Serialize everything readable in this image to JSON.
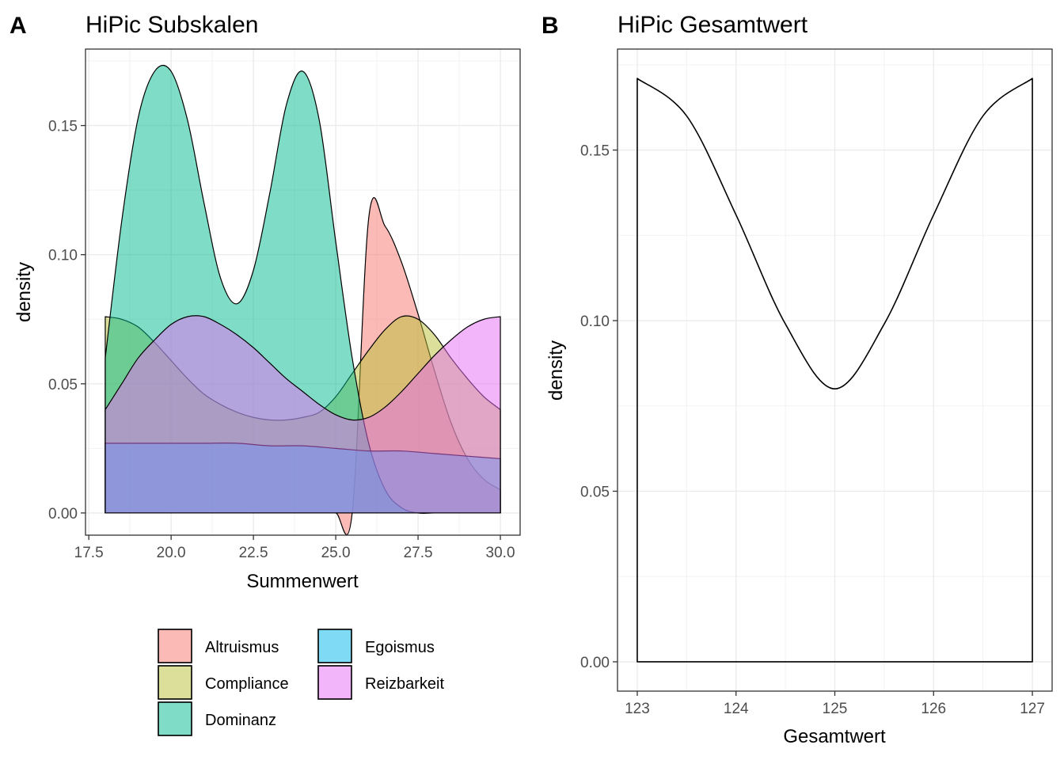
{
  "chart_data": [
    {
      "panel": "A",
      "type": "area",
      "title": "HiPic Subskalen",
      "xlabel": "Summenwert",
      "ylabel": "density",
      "xlim": [
        17.4,
        30.6
      ],
      "ylim": [
        -0.0086,
        0.1796
      ],
      "xticks": [
        17.5,
        20.0,
        22.5,
        25.0,
        27.5,
        30.0
      ],
      "xtick_labels": [
        "17.5",
        "20.0",
        "22.5",
        "25.0",
        "27.5",
        "30.0"
      ],
      "yticks": [
        0.0,
        0.05,
        0.1,
        0.15
      ],
      "ytick_labels": [
        "0.00",
        "0.05",
        "0.10",
        "0.15"
      ],
      "grid": true,
      "legend_position": "bottom",
      "series": [
        {
          "name": "Altruismus",
          "color": "#F8766D",
          "x": [
            18,
            18.5,
            19,
            19.5,
            20,
            20.5,
            21,
            21.5,
            22,
            22.5,
            23,
            23.5,
            24,
            24.5,
            25,
            25.5,
            26,
            26.5,
            27,
            27.5,
            28,
            28.5,
            29,
            29.5,
            30
          ],
          "y": [
            0.0,
            0.0,
            0.0,
            0.0,
            0.0,
            0.0,
            0.0,
            0.0,
            0.0,
            0.0,
            0.0,
            0.0,
            0.0,
            0.0,
            0.0,
            0.0,
            0.114,
            0.111,
            0.097,
            0.077,
            0.055,
            0.035,
            0.021,
            0.013,
            0.009
          ]
        },
        {
          "name": "Compliance",
          "color": "#B7C033",
          "x": [
            18,
            18.5,
            19,
            19.5,
            20,
            20.5,
            21,
            21.5,
            22,
            22.5,
            23,
            23.5,
            24,
            24.5,
            25,
            25.5,
            26,
            26.5,
            27,
            27.5,
            28,
            28.5,
            29,
            29.5,
            30
          ],
          "y": [
            0.076,
            0.075,
            0.072,
            0.066,
            0.059,
            0.052,
            0.046,
            0.042,
            0.039,
            0.037,
            0.036,
            0.036,
            0.037,
            0.039,
            0.045,
            0.054,
            0.063,
            0.071,
            0.076,
            0.075,
            0.069,
            0.06,
            0.052,
            0.045,
            0.04
          ]
        },
        {
          "name": "Dominanz",
          "color": "#00BA8E",
          "x": [
            18,
            18.5,
            19,
            19.5,
            20,
            20.5,
            21,
            21.5,
            22,
            22.5,
            23,
            23.5,
            24,
            24.5,
            25,
            25.5,
            26,
            26.5,
            27,
            27.5,
            28,
            28.5,
            29,
            29.5,
            30
          ],
          "y": [
            0.06,
            0.113,
            0.153,
            0.171,
            0.171,
            0.152,
            0.12,
            0.091,
            0.081,
            0.094,
            0.124,
            0.158,
            0.171,
            0.152,
            0.105,
            0.06,
            0.027,
            0.009,
            0.002,
            0.0,
            0.0,
            0.0,
            0.0,
            0.0,
            0.0
          ]
        },
        {
          "name": "Egoismus",
          "color": "#00B5EE",
          "x": [
            18,
            19,
            20,
            21,
            22,
            23,
            24,
            25,
            26,
            27,
            28,
            29,
            30
          ],
          "y": [
            0.027,
            0.027,
            0.027,
            0.027,
            0.027,
            0.026,
            0.026,
            0.025,
            0.024,
            0.024,
            0.023,
            0.022,
            0.021
          ]
        },
        {
          "name": "Reizbarkeit",
          "color": "#E76BF3",
          "x": [
            18,
            18.5,
            19,
            19.5,
            20,
            20.5,
            21,
            21.5,
            22,
            22.5,
            23,
            23.5,
            24,
            24.5,
            25,
            25.5,
            26,
            26.5,
            27,
            27.5,
            28,
            28.5,
            29,
            29.5,
            30
          ],
          "y": [
            0.04,
            0.05,
            0.06,
            0.067,
            0.073,
            0.076,
            0.076,
            0.073,
            0.069,
            0.064,
            0.058,
            0.052,
            0.047,
            0.042,
            0.038,
            0.036,
            0.037,
            0.041,
            0.047,
            0.054,
            0.061,
            0.067,
            0.072,
            0.075,
            0.076
          ]
        }
      ]
    },
    {
      "panel": "B",
      "type": "area",
      "title": "HiPic Gesamtwert",
      "xlabel": "Gesamtwert",
      "ylabel": "density",
      "xlim": [
        122.8,
        127.2
      ],
      "ylim": [
        -0.0086,
        0.1796
      ],
      "xticks": [
        123,
        124,
        125,
        126,
        127
      ],
      "xtick_labels": [
        "123",
        "124",
        "125",
        "126",
        "127"
      ],
      "yticks": [
        0.0,
        0.05,
        0.1,
        0.15
      ],
      "ytick_labels": [
        "0.00",
        "0.05",
        "0.10",
        "0.15"
      ],
      "grid": true,
      "series": [
        {
          "x": [
            123,
            123.5,
            124,
            124.5,
            125,
            125.5,
            126,
            126.5,
            127
          ],
          "y": [
            0.171,
            0.16,
            0.131,
            0.099,
            0.08,
            0.099,
            0.131,
            0.16,
            0.171
          ]
        }
      ]
    }
  ]
}
